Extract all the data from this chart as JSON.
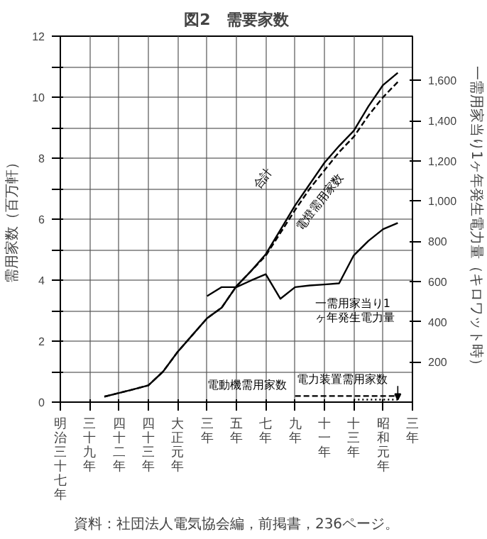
{
  "chart_data": {
    "type": "line",
    "title": "図2　需要家数",
    "ylabel": "需用家数（百万軒）",
    "y2label": "一需用家当り1ヶ年発生電力量（キロワット時）",
    "annotations": [
      "資料：社団法人電気協会編，前掲書，236ページ。"
    ],
    "categories": [
      "明治三十七年",
      null,
      "三十九年",
      null,
      "四十二年",
      null,
      "四十三年",
      null,
      "大正元年",
      null,
      "三年",
      null,
      "五年",
      null,
      "七年",
      null,
      "九年",
      null,
      "十一年",
      null,
      "十三年",
      null,
      "昭和元年",
      null,
      "三年"
    ],
    "ylim": [
      0,
      12
    ],
    "yticks": [
      0,
      {
        "value": 1,
        "label": null
      },
      2,
      {
        "value": 3,
        "label": null
      },
      4,
      {
        "value": 5,
        "label": null
      },
      6,
      {
        "value": 7,
        "label": null
      },
      8,
      {
        "value": 9,
        "label": null
      },
      10,
      {
        "value": 11,
        "label": null
      },
      12
    ],
    "y2lim": [
      0,
      1820
    ],
    "y2ticks": [
      200,
      400,
      600,
      800,
      {
        "value": 1000,
        "label": "1,000"
      },
      {
        "value": 1200,
        "label": "1,200"
      },
      {
        "value": 1400,
        "label": "1,400"
      },
      {
        "value": 1600,
        "label": "1,600"
      }
    ],
    "grid": true,
    "series": [
      {
        "name": "合計",
        "color": "#000000",
        "line_style": "solid",
        "values": [
          null,
          null,
          null,
          0.18,
          0.3,
          0.42,
          0.55,
          1.0,
          1.65,
          2.2,
          2.75,
          3.1,
          3.8,
          4.3,
          4.85,
          5.65,
          6.45,
          7.15,
          7.85,
          8.4,
          8.9,
          9.7,
          10.4,
          10.8,
          null
        ]
      },
      {
        "name": "電燈需用家数",
        "color": "#000000",
        "line_style": "dashed",
        "values": [
          null,
          null,
          null,
          0.18,
          0.3,
          0.42,
          0.55,
          1.0,
          1.65,
          2.2,
          2.75,
          3.1,
          3.8,
          4.3,
          4.8,
          5.55,
          6.3,
          7.0,
          7.6,
          8.2,
          8.7,
          9.4,
          10.0,
          10.5,
          null
        ]
      },
      {
        "name": "一需用家当り1ヶ年発生電力量",
        "color": "#000000",
        "line_style": "solid",
        "axis": "y2",
        "values": [
          null,
          null,
          null,
          null,
          null,
          null,
          null,
          null,
          null,
          null,
          527,
          572,
          572,
          605,
          636,
          514,
          572,
          580,
          585,
          591,
          730,
          802,
          860,
          891,
          null
        ]
      },
      {
        "name": "電動機需用家数",
        "color": "#000000",
        "line_style": "dashed",
        "values": [
          null,
          null,
          null,
          null,
          null,
          null,
          null,
          null,
          null,
          null,
          null,
          null,
          null,
          null,
          null,
          null,
          0.2,
          0.2,
          0.2,
          0.2,
          0.2,
          0.2,
          0.2,
          0.2,
          null
        ]
      },
      {
        "name": "電力装置需用家数",
        "color": "#000000",
        "line_style": "dotted",
        "values": [
          null,
          null,
          null,
          null,
          null,
          null,
          null,
          null,
          null,
          null,
          null,
          null,
          null,
          null,
          null,
          null,
          null,
          null,
          null,
          null,
          0.08,
          0.08,
          0.08,
          0.08,
          null
        ]
      }
    ]
  }
}
